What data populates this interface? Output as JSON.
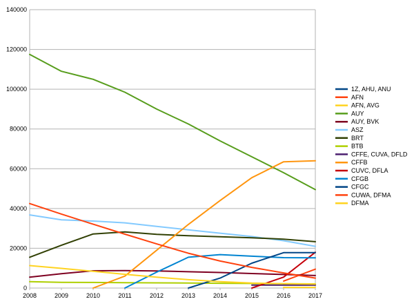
{
  "chart_data": {
    "type": "line",
    "title": "",
    "xlabel": "",
    "ylabel": "",
    "x": [
      2008,
      2009,
      2010,
      2011,
      2012,
      2013,
      2014,
      2015,
      2016,
      2017
    ],
    "xlim": [
      2008,
      2017
    ],
    "ylim": [
      0,
      140000
    ],
    "yticks": [
      0,
      20000,
      40000,
      60000,
      80000,
      100000,
      120000,
      140000
    ],
    "grid": "horizontal",
    "legend_position": "right",
    "series": [
      {
        "name": "1Z, AHU, ANU",
        "color": "#004586",
        "values": [
          null,
          null,
          null,
          null,
          null,
          null,
          null,
          null,
          1800,
          1800
        ]
      },
      {
        "name": "AFN",
        "color": "#ff420e",
        "values": [
          null,
          null,
          null,
          null,
          null,
          null,
          null,
          null,
          3500,
          9500
        ]
      },
      {
        "name": "AFN, AVG",
        "color": "#ffd320",
        "values": [
          null,
          null,
          null,
          null,
          null,
          null,
          null,
          null,
          300,
          300
        ]
      },
      {
        "name": "AUY",
        "color": "#579d1c",
        "values": [
          117500,
          109000,
          105000,
          98500,
          90000,
          82500,
          74000,
          66000,
          58000,
          49500
        ]
      },
      {
        "name": "AUY, BVK",
        "color": "#7e0021",
        "values": [
          5500,
          7200,
          8700,
          8800,
          8600,
          8200,
          7800,
          7300,
          6800,
          6300
        ]
      },
      {
        "name": "ASZ",
        "color": "#83caff",
        "values": [
          36800,
          34300,
          33700,
          32800,
          31000,
          29300,
          27600,
          25900,
          23800,
          21000
        ]
      },
      {
        "name": "BRT",
        "color": "#314004",
        "values": [
          15500,
          21500,
          27200,
          28200,
          27000,
          26300,
          25800,
          25300,
          24600,
          23300
        ]
      },
      {
        "name": "BTB",
        "color": "#aecf00",
        "values": [
          3200,
          2900,
          2800,
          2700,
          2600,
          2500,
          2400,
          2300,
          2200,
          2100
        ]
      },
      {
        "name": "CFFE, CUVA, DFLD",
        "color": "#4b1f6f",
        "values": [
          null,
          null,
          null,
          null,
          null,
          null,
          null,
          1500,
          1500,
          1500
        ]
      },
      {
        "name": "CFFB",
        "color": "#ff950e",
        "values": [
          null,
          null,
          0,
          6000,
          19000,
          32000,
          44000,
          55500,
          63500,
          64000
        ]
      },
      {
        "name": "CUVC, DFLA",
        "color": "#c5000b",
        "values": [
          null,
          null,
          null,
          null,
          null,
          null,
          null,
          0,
          5500,
          18000
        ]
      },
      {
        "name": "CFGB",
        "color": "#0084d1",
        "values": [
          null,
          null,
          null,
          0,
          8000,
          15500,
          16800,
          16000,
          15300,
          15200
        ]
      },
      {
        "name": "CFGC",
        "color": "#004586",
        "values": [
          null,
          null,
          null,
          null,
          null,
          0,
          5000,
          12500,
          17800,
          17800
        ]
      },
      {
        "name": "CUWA, DFMA",
        "color": "#ff420e",
        "values": [
          42500,
          37200,
          32100,
          27100,
          22200,
          17500,
          13600,
          10400,
          7600,
          5000
        ]
      },
      {
        "name": "DFMA",
        "color": "#ffd320",
        "values": [
          11300,
          9900,
          8400,
          6900,
          5500,
          4200,
          3200,
          2500,
          2200,
          2000
        ]
      }
    ]
  }
}
